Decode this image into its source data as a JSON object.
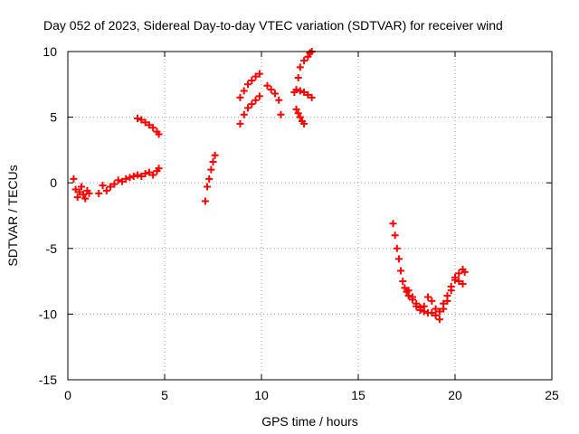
{
  "chart_data": {
    "type": "scatter",
    "title": "Day 052 of 2023, Sidereal Day-to-day VTEC variation (SDTVAR) for receiver wind",
    "xlabel": "GPS time / hours",
    "ylabel": "SDTVAR / TECUs",
    "xlim": [
      0,
      25
    ],
    "ylim": [
      -15,
      10
    ],
    "xticks": [
      0,
      5,
      10,
      15,
      20,
      25
    ],
    "yticks": [
      -15,
      -10,
      -5,
      0,
      5,
      10
    ],
    "xtick_labels": [
      "0",
      "5",
      "10",
      "15",
      "20",
      "25"
    ],
    "ytick_labels": [
      "-15",
      "-10",
      "-5",
      "0",
      "5",
      "10"
    ],
    "grid": true,
    "marker": "+",
    "color": "#ff0000",
    "series": [
      {
        "name": "seg1",
        "x": [
          0.3,
          0.4,
          0.5,
          0.6,
          0.7,
          0.8,
          0.9,
          1.0,
          1.1
        ],
        "y": [
          0.3,
          -0.5,
          -1.1,
          -0.7,
          -0.3,
          -0.9,
          -1.2,
          -0.6,
          -0.8
        ]
      },
      {
        "name": "seg2",
        "x": [
          1.6,
          1.8,
          2.0,
          2.2,
          2.4,
          2.6,
          2.8,
          3.0,
          3.2,
          3.4,
          3.6,
          3.8,
          4.0,
          4.2,
          4.4,
          4.6,
          4.7
        ],
        "y": [
          -0.8,
          -0.2,
          -0.6,
          -0.3,
          -0.1,
          0.2,
          0.1,
          0.3,
          0.4,
          0.5,
          0.6,
          0.5,
          0.7,
          0.8,
          0.6,
          0.9,
          1.1
        ]
      },
      {
        "name": "seg3",
        "x": [
          3.6,
          3.8,
          4.0,
          4.2,
          4.4,
          4.6,
          4.7
        ],
        "y": [
          4.9,
          4.8,
          4.6,
          4.4,
          4.2,
          3.9,
          3.7
        ]
      },
      {
        "name": "seg4",
        "x": [
          7.1,
          7.2,
          7.3,
          7.4,
          7.5,
          7.6
        ],
        "y": [
          -1.4,
          -0.3,
          0.3,
          1.0,
          1.6,
          2.1
        ]
      },
      {
        "name": "seg5",
        "x": [
          8.9,
          9.1,
          9.3,
          9.5,
          9.7,
          9.9
        ],
        "y": [
          6.5,
          7.0,
          7.5,
          7.8,
          8.1,
          8.3
        ]
      },
      {
        "name": "seg6",
        "x": [
          8.9,
          9.1,
          9.3,
          9.5,
          9.7,
          9.9
        ],
        "y": [
          4.5,
          5.2,
          5.7,
          6.0,
          6.3,
          6.6
        ]
      },
      {
        "name": "seg7",
        "x": [
          10.3,
          10.5,
          10.7,
          10.9,
          11.0
        ],
        "y": [
          7.4,
          7.1,
          6.8,
          6.3,
          5.2
        ]
      },
      {
        "name": "seg8",
        "x": [
          11.7,
          11.9,
          12.0,
          12.2,
          12.4,
          12.5,
          12.6
        ],
        "y": [
          6.9,
          8.0,
          8.8,
          9.3,
          9.6,
          9.9,
          10.0
        ]
      },
      {
        "name": "seg9",
        "x": [
          11.8,
          12.0,
          12.2,
          12.4,
          12.6
        ],
        "y": [
          7.1,
          7.0,
          6.9,
          6.7,
          6.5
        ]
      },
      {
        "name": "seg10",
        "x": [
          11.8,
          11.9,
          12.0,
          12.1,
          12.2
        ],
        "y": [
          5.6,
          5.3,
          5.0,
          4.7,
          4.5
        ]
      },
      {
        "name": "seg11",
        "x": [
          16.8,
          16.9,
          17.0,
          17.1,
          17.2,
          17.3,
          17.4,
          17.5,
          17.6,
          17.8,
          18.0,
          18.2,
          18.4,
          18.6,
          18.8,
          19.0,
          19.2,
          19.4,
          19.6,
          19.8,
          20.0,
          20.2,
          20.4,
          20.5
        ],
        "y": [
          -3.1,
          -4.0,
          -5.0,
          -5.8,
          -6.7,
          -7.5,
          -8.0,
          -8.3,
          -8.6,
          -8.9,
          -9.2,
          -9.5,
          -9.4,
          -8.7,
          -9.0,
          -9.6,
          -10.4,
          -9.6,
          -9.0,
          -8.2,
          -7.4,
          -6.9,
          -6.6,
          -6.8
        ]
      },
      {
        "name": "seg12",
        "x": [
          17.6,
          17.8,
          18.0,
          18.2,
          18.4,
          18.6,
          18.8,
          19.0,
          19.2,
          19.4,
          19.6,
          19.8,
          20.0,
          20.2,
          20.4
        ],
        "y": [
          -8.2,
          -8.7,
          -9.4,
          -9.7,
          -9.8,
          -9.9,
          -9.9,
          -10.1,
          -9.8,
          -9.2,
          -8.6,
          -7.9,
          -7.2,
          -7.5,
          -7.7
        ]
      }
    ]
  }
}
